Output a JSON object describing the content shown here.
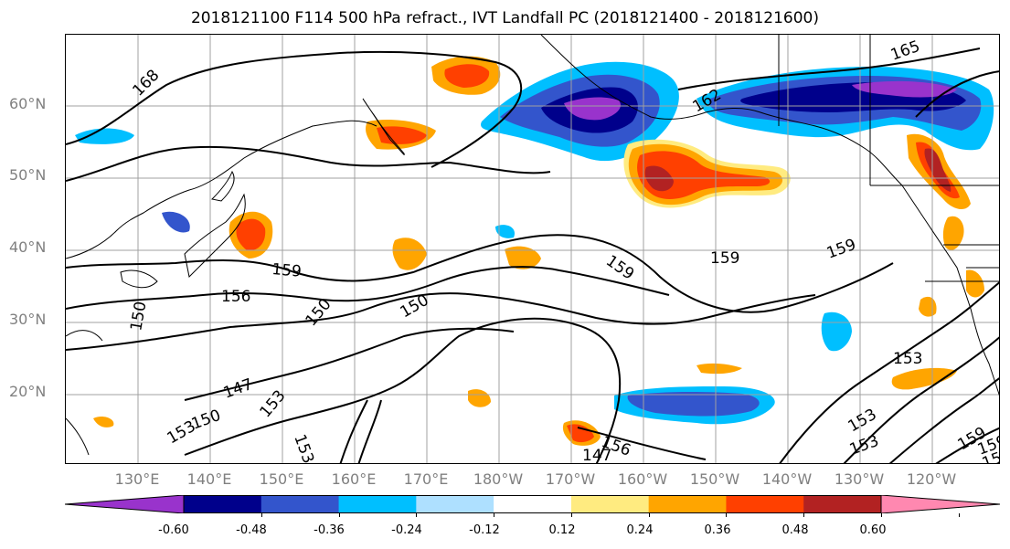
{
  "title": "2018121100 F114 500 hPa refract., IVT Landfall PC (2018121400 - 2018121600)",
  "lat_labels": [
    "60°N",
    "50°N",
    "40°N",
    "30°N",
    "20°N"
  ],
  "lon_labels": [
    "130°E",
    "140°E",
    "150°E",
    "160°E",
    "170°E",
    "180°W",
    "170°W",
    "160°W",
    "150°W",
    "140°W",
    "130°W",
    "120°W"
  ],
  "contour_labels": [
    "168",
    "165",
    "162",
    "159",
    "159",
    "159",
    "156",
    "159",
    "150",
    "150",
    "147",
    "150",
    "153",
    "153",
    "156",
    "147",
    "153",
    "153",
    "159",
    "156",
    "153",
    "159",
    "150",
    "153"
  ],
  "colorbar": {
    "colors": [
      "#9933cc",
      "#00008b",
      "#3355cc",
      "#00bfff",
      "#aee0ff",
      "#ffffff",
      "#ffeb80",
      "#ffa500",
      "#ff4000",
      "#b22222",
      "#ff88b0"
    ],
    "tick_labels": [
      "-0.60",
      "-0.48",
      "-0.36",
      "-0.24",
      "-0.12",
      "0.12",
      "0.24",
      "0.36",
      "0.48",
      "0.60"
    ]
  }
}
